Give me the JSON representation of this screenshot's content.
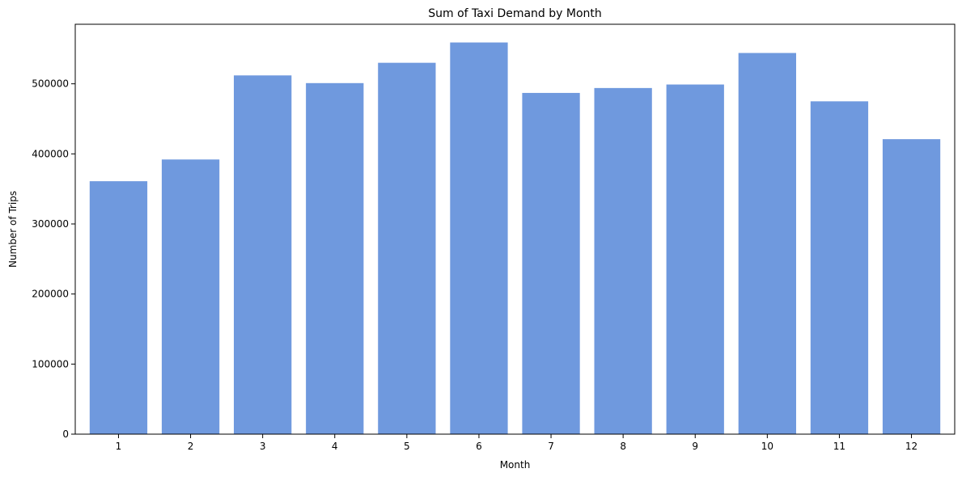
{
  "chart_data": {
    "type": "bar",
    "title": "Sum of Taxi Demand by Month",
    "xlabel": "Month",
    "ylabel": "Number of Trips",
    "categories": [
      "1",
      "2",
      "3",
      "4",
      "5",
      "6",
      "7",
      "8",
      "9",
      "10",
      "11",
      "12"
    ],
    "values": [
      361000,
      392000,
      512000,
      501000,
      530000,
      559000,
      487000,
      494000,
      499000,
      544000,
      475000,
      421000
    ],
    "ylim": [
      0,
      585000
    ],
    "yticks": [
      0,
      100000,
      200000,
      300000,
      400000,
      500000
    ],
    "ytick_labels": [
      "0",
      "100000",
      "200000",
      "300000",
      "400000",
      "500000"
    ],
    "bar_color": "#6f99de",
    "grid": false,
    "legend": "none"
  }
}
